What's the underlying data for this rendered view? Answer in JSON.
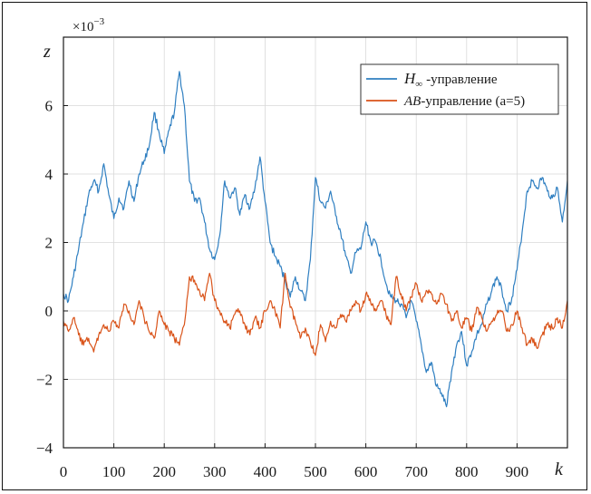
{
  "chart_data": {
    "type": "line",
    "xlabel": "k",
    "ylabel": "z",
    "y_multiplier": "×10",
    "y_multiplier_exp": "−3",
    "xlim": [
      0,
      1000
    ],
    "ylim": [
      -4,
      8
    ],
    "x_ticks": [
      0,
      100,
      200,
      300,
      400,
      500,
      600,
      700,
      800,
      900
    ],
    "x_tick_labels": [
      "0",
      "100",
      "200",
      "300",
      "400",
      "500",
      "600",
      "700",
      "800",
      "900"
    ],
    "y_ticks": [
      -4,
      -2,
      0,
      2,
      4,
      6
    ],
    "y_tick_labels": [
      "−4",
      "−2",
      "0",
      "2",
      "4",
      "6"
    ],
    "grid": true,
    "legend_position": "top-right",
    "series": [
      {
        "name": "-управление",
        "name_symbol": "H",
        "name_subscript": "∞",
        "color": "#2f7fc1",
        "x": [
          0,
          10,
          20,
          30,
          40,
          50,
          60,
          70,
          80,
          90,
          100,
          110,
          120,
          130,
          140,
          150,
          160,
          170,
          180,
          190,
          200,
          210,
          220,
          230,
          240,
          250,
          260,
          270,
          280,
          290,
          300,
          310,
          320,
          330,
          340,
          350,
          360,
          370,
          380,
          390,
          400,
          410,
          420,
          430,
          440,
          450,
          460,
          470,
          480,
          490,
          500,
          510,
          520,
          530,
          540,
          550,
          560,
          570,
          580,
          590,
          600,
          610,
          620,
          630,
          640,
          650,
          660,
          670,
          680,
          690,
          700,
          710,
          720,
          730,
          740,
          750,
          760,
          770,
          780,
          790,
          800,
          810,
          820,
          830,
          840,
          850,
          860,
          870,
          880,
          890,
          900,
          910,
          920,
          930,
          940,
          950,
          960,
          970,
          980,
          990,
          1000
        ],
        "values": [
          0.5,
          0.3,
          1.0,
          1.8,
          2.6,
          3.4,
          3.8,
          3.5,
          4.3,
          3.4,
          2.7,
          3.3,
          3.0,
          3.8,
          3.2,
          4.0,
          4.4,
          4.8,
          5.8,
          5.2,
          4.6,
          5.3,
          5.8,
          7.0,
          6.0,
          3.8,
          3.2,
          3.3,
          2.6,
          1.8,
          1.5,
          2.2,
          3.8,
          3.3,
          3.6,
          2.8,
          3.4,
          3.0,
          3.6,
          4.5,
          3.2,
          2.0,
          1.6,
          1.3,
          0.9,
          0.4,
          1.0,
          0.6,
          0.3,
          1.5,
          3.9,
          3.2,
          3.0,
          3.5,
          2.8,
          2.3,
          1.6,
          1.1,
          1.7,
          1.8,
          2.6,
          2.0,
          2.0,
          1.5,
          0.8,
          0.4,
          0.3,
          0.2,
          -0.2,
          0.3,
          -0.3,
          -1.0,
          -1.8,
          -1.5,
          -2.2,
          -2.4,
          -2.8,
          -1.8,
          -1.0,
          -0.6,
          -1.6,
          -1.2,
          -0.7,
          -0.4,
          0.2,
          0.6,
          1.0,
          0.6,
          0.0,
          0.4,
          1.2,
          2.3,
          3.5,
          3.8,
          3.6,
          3.9,
          3.5,
          3.3,
          3.6,
          2.6,
          3.8
        ]
      },
      {
        "name": "-управление (a=5)",
        "name_prefix": "AB",
        "color": "#d95319",
        "x": [
          0,
          10,
          20,
          30,
          40,
          50,
          60,
          70,
          80,
          90,
          100,
          110,
          120,
          130,
          140,
          150,
          160,
          170,
          180,
          190,
          200,
          210,
          220,
          230,
          240,
          250,
          260,
          270,
          280,
          290,
          300,
          310,
          320,
          330,
          340,
          350,
          360,
          370,
          380,
          390,
          400,
          410,
          420,
          430,
          440,
          450,
          460,
          470,
          480,
          490,
          500,
          510,
          520,
          530,
          540,
          550,
          560,
          570,
          580,
          590,
          600,
          610,
          620,
          630,
          640,
          650,
          660,
          670,
          680,
          690,
          700,
          710,
          720,
          730,
          740,
          750,
          760,
          770,
          780,
          790,
          800,
          810,
          820,
          830,
          840,
          850,
          860,
          870,
          880,
          890,
          900,
          910,
          920,
          930,
          940,
          950,
          960,
          970,
          980,
          990,
          1000
        ],
        "values": [
          -0.3,
          -0.6,
          -0.2,
          -0.7,
          -1.0,
          -0.8,
          -1.2,
          -0.7,
          -0.4,
          -0.6,
          -0.3,
          -0.5,
          0.2,
          0.0,
          -0.4,
          0.3,
          -0.2,
          -0.6,
          -0.8,
          0.0,
          -0.4,
          -0.6,
          -0.8,
          -1.0,
          -0.4,
          1.0,
          0.9,
          0.6,
          0.3,
          1.1,
          0.3,
          0.0,
          -0.3,
          -0.5,
          -0.1,
          0.0,
          -0.4,
          -0.7,
          -0.2,
          -0.5,
          0.0,
          0.3,
          0.0,
          -0.5,
          1.1,
          0.1,
          -0.3,
          -0.8,
          -0.5,
          -0.9,
          -1.3,
          -0.4,
          -0.9,
          -0.3,
          -0.5,
          -0.1,
          -0.3,
          0.0,
          0.3,
          0.0,
          0.5,
          0.2,
          0.0,
          0.3,
          -0.1,
          -0.4,
          1.0,
          0.5,
          0.0,
          0.4,
          0.8,
          0.3,
          0.6,
          0.5,
          0.2,
          0.5,
          0.2,
          -0.3,
          0.0,
          -0.5,
          -0.2,
          -0.6,
          0.1,
          -0.2,
          -0.6,
          -0.3,
          -0.1,
          0.0,
          -0.6,
          -0.4,
          0.0,
          -0.5,
          -1.0,
          -0.8,
          -1.1,
          -0.7,
          -0.4,
          -0.5,
          -0.2,
          -0.5,
          0.3
        ]
      }
    ]
  }
}
